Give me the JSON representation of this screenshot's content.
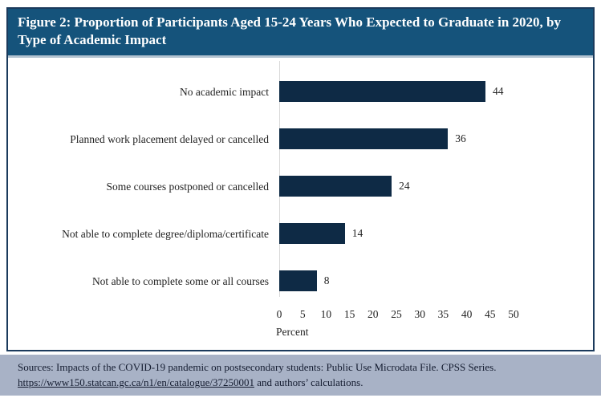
{
  "figure": {
    "title": "Figure 2: Proportion of Participants Aged 15-24 Years Who Expected to Graduate in 2020, by Type of Academic Impact"
  },
  "chart_data": {
    "type": "bar",
    "orientation": "horizontal",
    "categories": [
      "No academic impact",
      "Planned work placement delayed or cancelled",
      "Some courses postponed or cancelled",
      "Not able to complete degree/diploma/certificate",
      "Not able to complete some or all courses"
    ],
    "values": [
      44,
      36,
      24,
      14,
      8
    ],
    "title": "",
    "xlabel": "Percent",
    "ylabel": "",
    "xlim": [
      0,
      50
    ],
    "xticks": [
      0,
      5,
      10,
      15,
      20,
      25,
      30,
      35,
      40,
      45,
      50
    ],
    "grid": false,
    "legend": "none",
    "bar_color": "#0e2a45"
  },
  "footer": {
    "line1": "Sources: Impacts of the COVID-19 pandemic on postsecondary students: Public Use Microdata File. CPSS Series.",
    "link_text": "https://www150.statcan.gc.ca/n1/en/catalogue/37250001",
    "line2_suffix": " and authors’ calculations."
  },
  "colors": {
    "header_background": "#15537b",
    "header_text": "#ffffff",
    "figure_border": "#1b3a5c",
    "bar": "#0e2a45",
    "axis_line": "#d8d8d8",
    "footer_background": "#a8b2c6",
    "footer_text": "#141c30"
  }
}
